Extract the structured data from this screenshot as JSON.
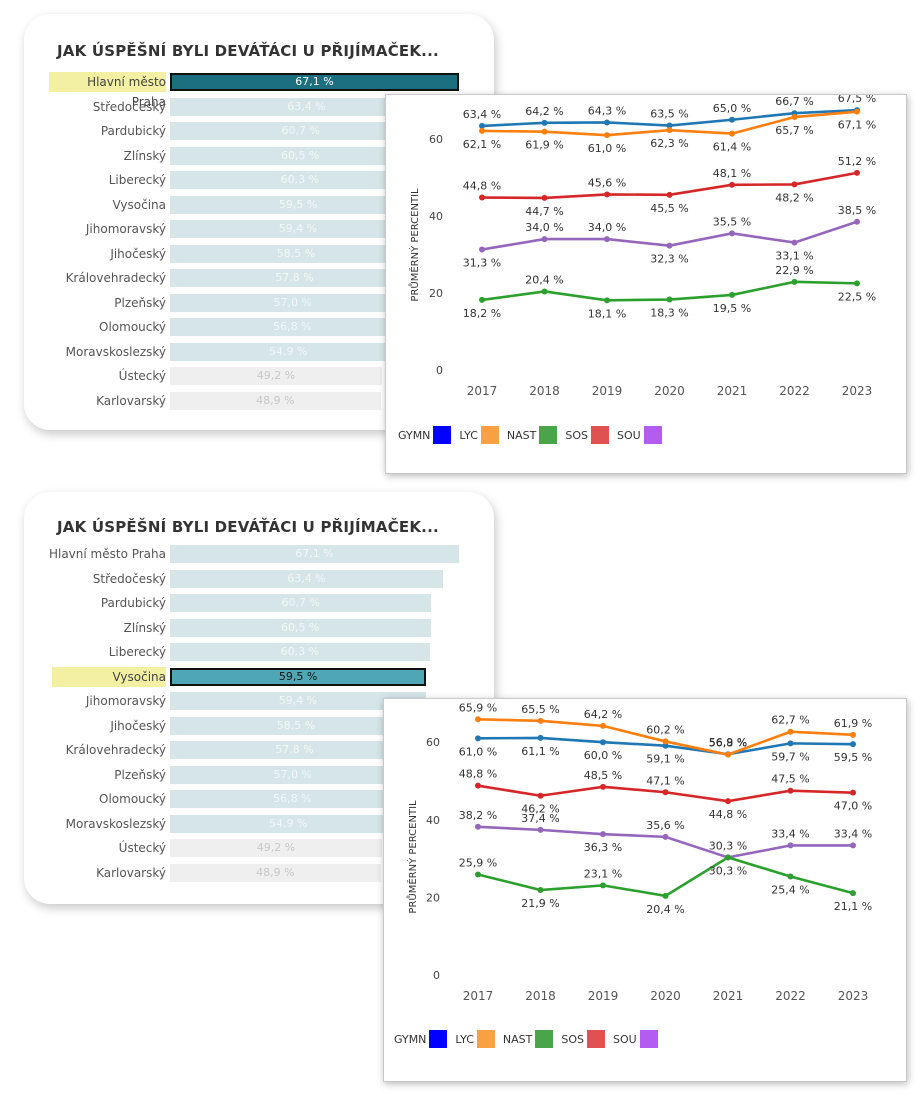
{
  "panels": [
    {
      "title": "JAK ÚSPĚŠNÍ BYLI DEVÁŤÁCI U PŘIJÍMAČEK...",
      "highlight_index": 0,
      "selected_color": "#1c6f7e",
      "regions": [
        {
          "name": "Hlavní město Praha",
          "value": 67.1,
          "label": "67,1 %"
        },
        {
          "name": "Středočeský",
          "value": 63.4,
          "label": "63,4 %"
        },
        {
          "name": "Pardubický",
          "value": 60.7,
          "label": "60,7 %"
        },
        {
          "name": "Zlínský",
          "value": 60.5,
          "label": "60,5 %"
        },
        {
          "name": "Liberecký",
          "value": 60.3,
          "label": "60,3 %"
        },
        {
          "name": "Vysočina",
          "value": 59.5,
          "label": "59,5 %"
        },
        {
          "name": "Jihomoravský",
          "value": 59.4,
          "label": "59,4 %"
        },
        {
          "name": "Jihočeský",
          "value": 58.5,
          "label": "58,5 %"
        },
        {
          "name": "Královehradecký",
          "value": 57.8,
          "label": "57,8 %"
        },
        {
          "name": "Plzeňský",
          "value": 57.0,
          "label": "57,0 %"
        },
        {
          "name": "Olomoucký",
          "value": 56.8,
          "label": "56,8 %"
        },
        {
          "name": "Moravskoslezský",
          "value": 54.9,
          "label": "54,9 %"
        },
        {
          "name": "Ústecký",
          "value": 49.2,
          "label": "49,2 %"
        },
        {
          "name": "Karlovarský",
          "value": 48.9,
          "label": "48,9 %"
        }
      ]
    },
    {
      "title": "JAK ÚSPĚŠNÍ BYLI DEVÁŤÁCI U PŘIJÍMAČEK...",
      "highlight_index": 5,
      "selected_color": "#4fa7b5",
      "regions": [
        {
          "name": "Hlavní město Praha",
          "value": 67.1,
          "label": "67,1 %"
        },
        {
          "name": "Středočeský",
          "value": 63.4,
          "label": "63,4 %"
        },
        {
          "name": "Pardubický",
          "value": 60.7,
          "label": "60,7 %"
        },
        {
          "name": "Zlínský",
          "value": 60.5,
          "label": "60,5 %"
        },
        {
          "name": "Liberecký",
          "value": 60.3,
          "label": "60,3 %"
        },
        {
          "name": "Vysočina",
          "value": 59.5,
          "label": "59,5 %"
        },
        {
          "name": "Jihomoravský",
          "value": 59.4,
          "label": "59,4 %"
        },
        {
          "name": "Jihočeský",
          "value": 58.5,
          "label": "58,5 %"
        },
        {
          "name": "Královehradecký",
          "value": 57.8,
          "label": "57,8 %"
        },
        {
          "name": "Plzeňský",
          "value": 57.0,
          "label": "57,0 %"
        },
        {
          "name": "Olomoucký",
          "value": 56.8,
          "label": "56,8 %"
        },
        {
          "name": "Moravskoslezský",
          "value": 54.9,
          "label": "54,9 %"
        },
        {
          "name": "Ústecký",
          "value": 49.2,
          "label": "49,2 %"
        },
        {
          "name": "Karlovarský",
          "value": 48.9,
          "label": "48,9 %"
        }
      ]
    }
  ],
  "legend": [
    {
      "name": "GYMN",
      "color": "#0000ff"
    },
    {
      "name": "LYC",
      "color": "#f7a044"
    },
    {
      "name": "NAST",
      "color": "#4aa54a"
    },
    {
      "name": "SOS",
      "color": "#e05252"
    },
    {
      "name": "SOU",
      "color": "#b35cf0"
    }
  ],
  "chart_data": [
    {
      "type": "line",
      "ylabel": "PRŮMĚRNÝ PERCENTIL",
      "x": [
        "2017",
        "2018",
        "2019",
        "2020",
        "2021",
        "2022",
        "2023"
      ],
      "yticks": [
        0,
        20,
        40,
        60
      ],
      "ylim": [
        0,
        70
      ],
      "series": [
        {
          "name": "GYMN",
          "color": "#1f77b4",
          "values": [
            63.4,
            64.2,
            64.3,
            63.5,
            65.0,
            66.7,
            67.5
          ],
          "labels": [
            "63,4 %",
            "64,2 %",
            "64,3 %",
            "63,5 %",
            "65,0 %",
            "66,7 %",
            "67,5 %"
          ]
        },
        {
          "name": "LYC",
          "color": "#ff7f0e",
          "values": [
            62.1,
            61.9,
            61.0,
            62.3,
            61.4,
            65.7,
            67.1
          ],
          "labels": [
            "62,1 %",
            "61,9 %",
            "61,0 %",
            "62,3 %",
            "61,4 %",
            "65,7 %",
            "67,1 %"
          ]
        },
        {
          "name": "SOS",
          "color": "#d62728",
          "values": [
            44.8,
            44.7,
            45.6,
            45.5,
            48.1,
            48.2,
            51.2
          ],
          "labels": [
            "44,8 %",
            "44,7 %",
            "45,6 %",
            "45,5 %",
            "48,1 %",
            "48,2 %",
            "51,2 %"
          ]
        },
        {
          "name": "SOU",
          "color": "#9467bd",
          "values": [
            31.3,
            34.0,
            34.0,
            32.3,
            35.5,
            33.1,
            38.5
          ],
          "labels": [
            "31,3 %",
            "34,0 %",
            "34,0 %",
            "32,3 %",
            "35,5 %",
            "33,1 %",
            "38,5 %"
          ]
        },
        {
          "name": "NAST",
          "color": "#2ca02c",
          "values": [
            18.2,
            20.4,
            18.1,
            18.3,
            19.5,
            22.9,
            22.5
          ],
          "labels": [
            "18,2 %",
            "20,4 %",
            "18,1 %",
            "18,3 %",
            "19,5 %",
            "22,9 %",
            "22,5 %"
          ]
        }
      ]
    },
    {
      "type": "line",
      "ylabel": "PRŮMĚRNÝ PERCENTIL",
      "x": [
        "2017",
        "2018",
        "2019",
        "2020",
        "2021",
        "2022",
        "2023"
      ],
      "yticks": [
        0,
        20,
        40,
        60
      ],
      "ylim": [
        0,
        70
      ],
      "series": [
        {
          "name": "GYMN",
          "color": "#1f77b4",
          "values": [
            61.0,
            61.1,
            60.0,
            59.1,
            56.9,
            59.7,
            59.5
          ],
          "labels": [
            "61,0 %",
            "61,1 %",
            "60,0 %",
            "59,1 %",
            "56,9 %",
            "59,7 %",
            "59,5 %"
          ]
        },
        {
          "name": "LYC",
          "color": "#ff7f0e",
          "values": [
            65.9,
            65.5,
            64.2,
            60.2,
            56.8,
            62.7,
            61.9
          ],
          "labels": [
            "65,9 %",
            "65,5 %",
            "64,2 %",
            "60,2 %",
            "56,8 %",
            "62,7 %",
            "61,9 %"
          ]
        },
        {
          "name": "SOS",
          "color": "#d62728",
          "values": [
            48.8,
            46.2,
            48.5,
            47.1,
            44.8,
            47.5,
            47.0
          ],
          "labels": [
            "48,8 %",
            "46,2 %",
            "48,5 %",
            "47,1 %",
            "44,8 %",
            "47,5 %",
            "47,0 %"
          ]
        },
        {
          "name": "SOU",
          "color": "#9467bd",
          "values": [
            38.2,
            37.4,
            36.3,
            35.6,
            30.3,
            33.4,
            33.4
          ],
          "labels": [
            "38,2 %",
            "37,4 %",
            "36,3 %",
            "35,6 %",
            "30,3 %",
            "33,4 %",
            "33,4 %"
          ]
        },
        {
          "name": "NAST",
          "color": "#2ca02c",
          "values": [
            25.9,
            21.9,
            23.1,
            20.4,
            30.3,
            25.4,
            21.1
          ],
          "labels": [
            "25,9 %",
            "21,9 %",
            "23,1 %",
            "20,4 %",
            "30,3 %",
            "25,4 %",
            "21,1 %"
          ]
        }
      ]
    }
  ]
}
